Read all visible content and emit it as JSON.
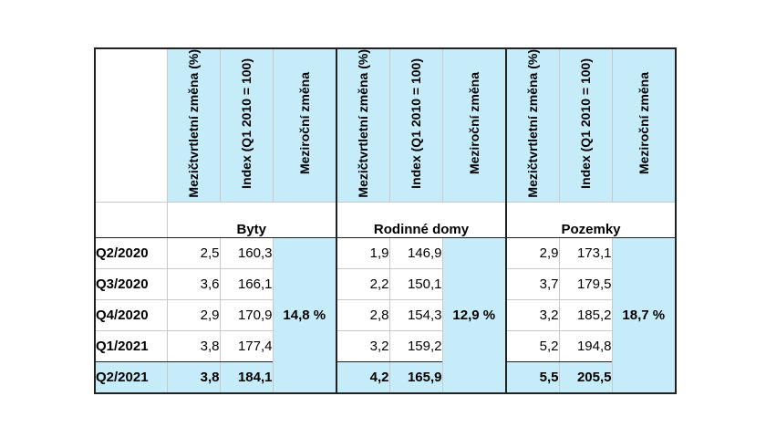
{
  "columns": {
    "qoq": "Mezičtvrtletní změna (%)",
    "index": "Index (Q1 2010 = 100)",
    "yoy": "Meziroční změna"
  },
  "groups": [
    {
      "name": "Byty",
      "yoy": "14,8 %"
    },
    {
      "name": "Rodinné domy",
      "yoy": "12,9 %"
    },
    {
      "name": "Pozemky",
      "yoy": "18,7 %"
    }
  ],
  "rows": [
    {
      "period": "Q2/2020",
      "values": [
        [
          "2,5",
          "160,3"
        ],
        [
          "1,9",
          "146,9"
        ],
        [
          "2,9",
          "173,1"
        ]
      ]
    },
    {
      "period": "Q3/2020",
      "values": [
        [
          "3,6",
          "166,1"
        ],
        [
          "2,2",
          "150,1"
        ],
        [
          "3,7",
          "179,5"
        ]
      ]
    },
    {
      "period": "Q4/2020",
      "values": [
        [
          "2,9",
          "170,9"
        ],
        [
          "2,8",
          "154,3"
        ],
        [
          "3,2",
          "185,2"
        ]
      ]
    },
    {
      "period": "Q1/2021",
      "values": [
        [
          "3,8",
          "177,4"
        ],
        [
          "3,2",
          "159,2"
        ],
        [
          "5,2",
          "194,8"
        ]
      ]
    },
    {
      "period": "Q2/2021",
      "values": [
        [
          "3,8",
          "184,1"
        ],
        [
          "4,2",
          "165,9"
        ],
        [
          "5,5",
          "205,5"
        ]
      ]
    }
  ]
}
